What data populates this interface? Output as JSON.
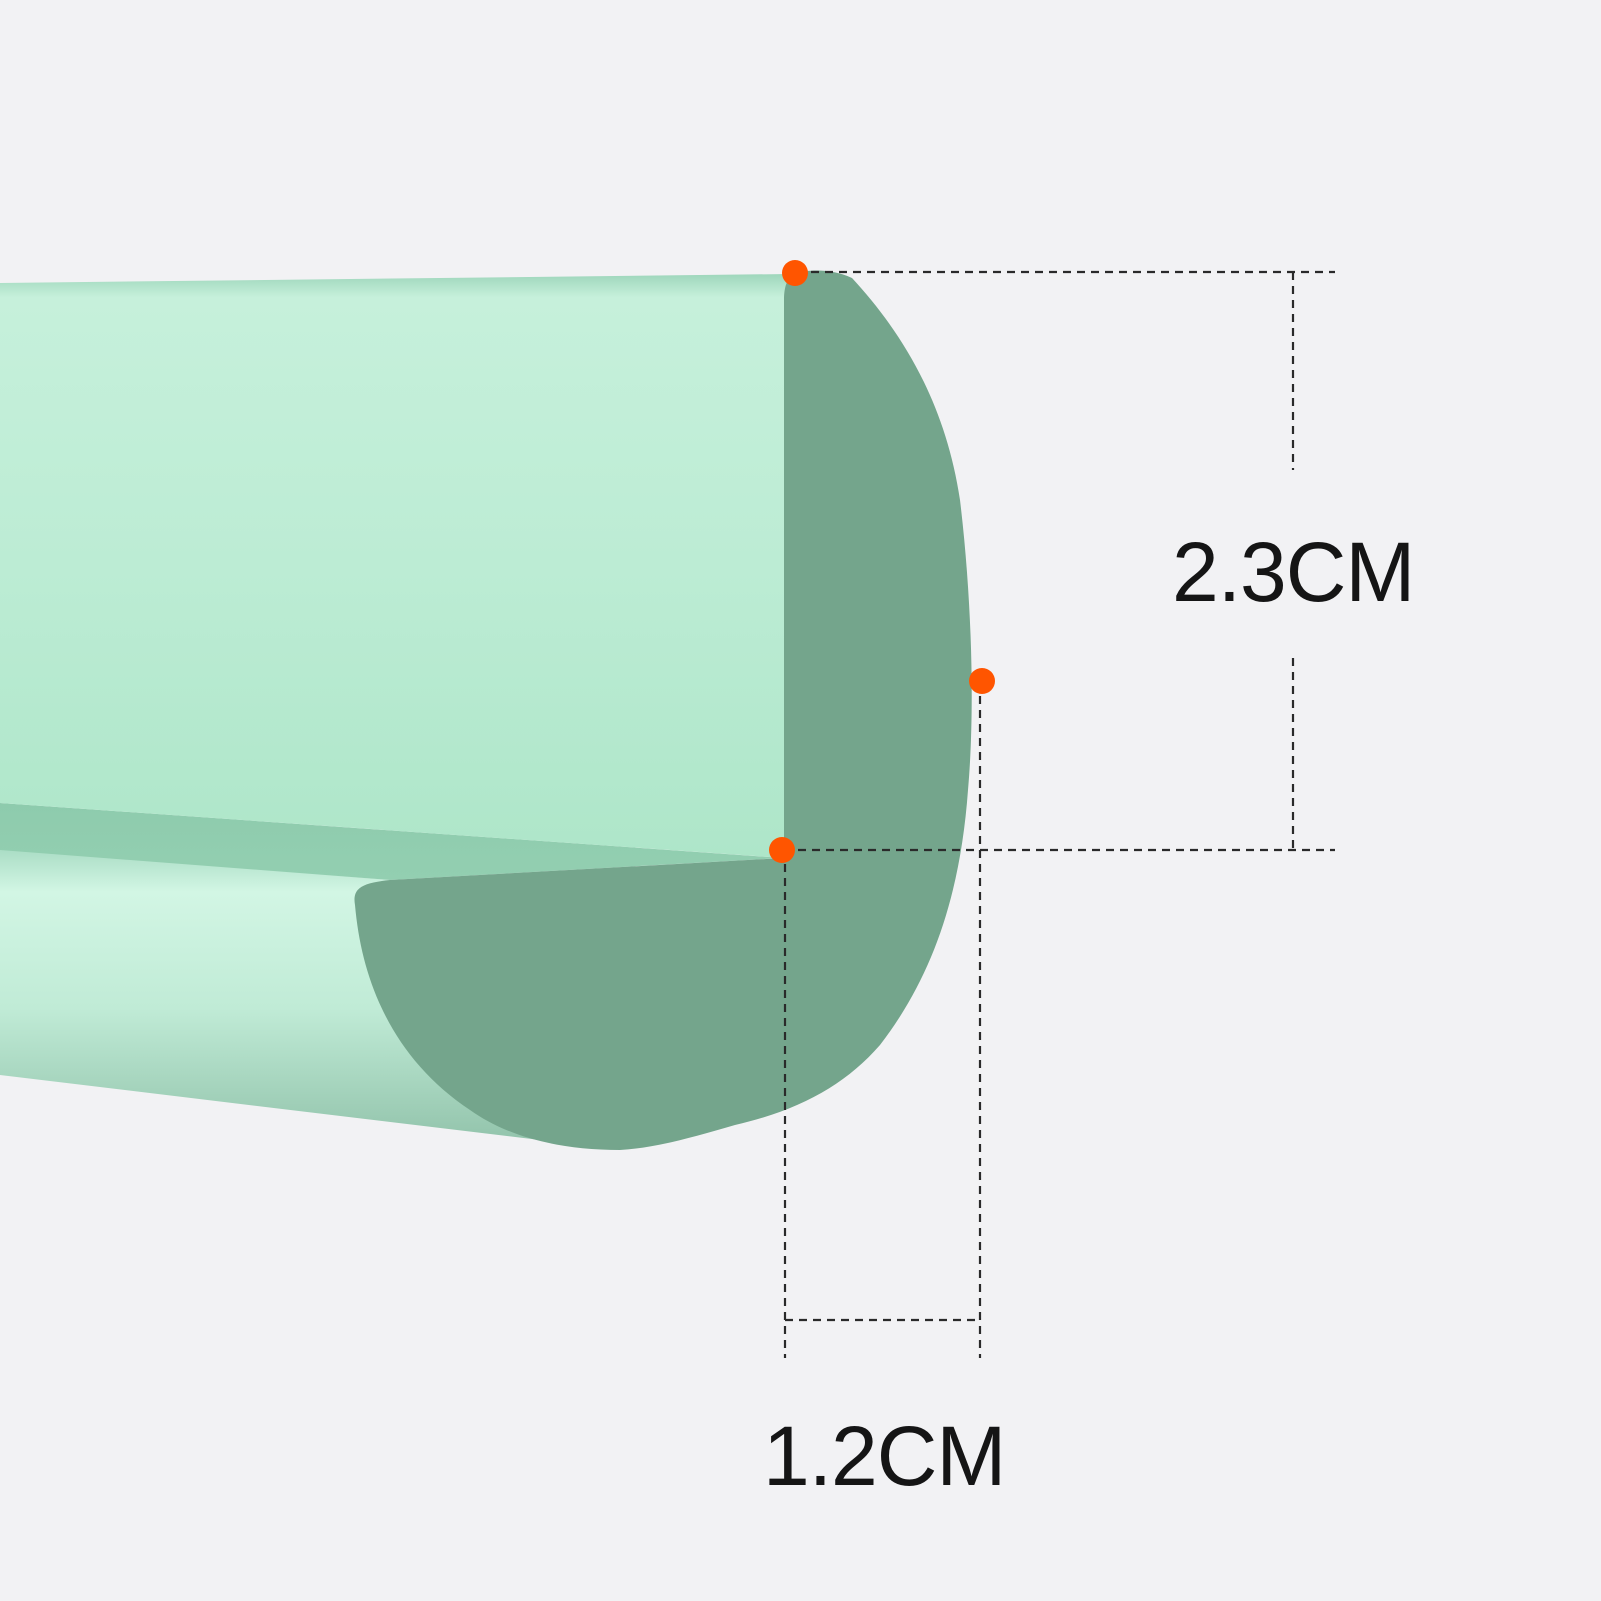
{
  "dimensions": {
    "height_label": "2.3CM",
    "width_label": "1.2CM"
  },
  "colors": {
    "background": "#f2f2f4",
    "strip_face_light": "#c8f1dd",
    "strip_face_mid": "#aee6c9",
    "strip_shadow": "#8ecbad",
    "cross_section": "#74a58c",
    "marker": "#ff5500",
    "dimension_line": "#2a2a2a",
    "label_text": "#151515"
  }
}
